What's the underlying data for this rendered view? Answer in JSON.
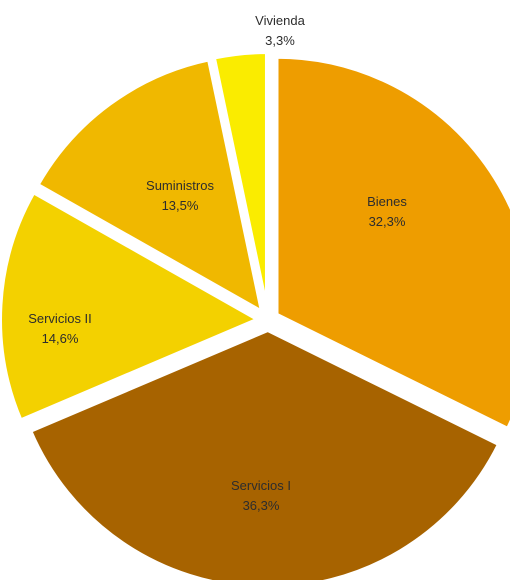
{
  "chart_data": {
    "type": "pie",
    "title": "",
    "slices": [
      {
        "label": "Bienes",
        "value_text": "32,3%",
        "value": 32.3,
        "color": "#EE9D00"
      },
      {
        "label": "Servicios I",
        "value_text": "36,3%",
        "value": 36.3,
        "color": "#A76300"
      },
      {
        "label": "Servicios II",
        "value_text": "14,6%",
        "value": 14.6,
        "color": "#F3D100"
      },
      {
        "label": "Suministros",
        "value_text": "13,5%",
        "value": 13.5,
        "color": "#F0B800"
      },
      {
        "label": "Vivienda",
        "value_text": "3,3%",
        "value": 3.3,
        "color": "#FAEC00"
      }
    ],
    "start_angle": "12 o'clock",
    "direction": "clockwise",
    "exploded": true,
    "legend": "none"
  }
}
